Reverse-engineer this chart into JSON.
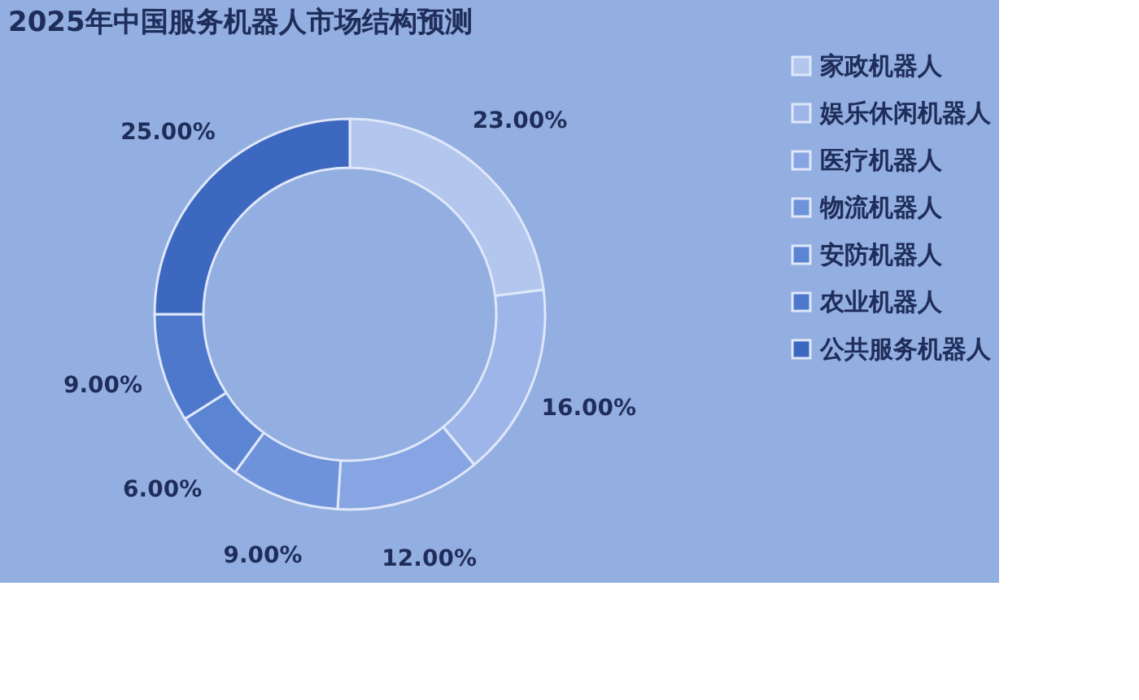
{
  "chart_data": {
    "type": "donut",
    "title": "2025年中国服务机器人市场结构预测",
    "categories": [
      "家政机器人",
      "娱乐休闲机器人",
      "医疗机器人",
      "物流机器人",
      "安防机器人",
      "农业机器人",
      "公共服务机器人"
    ],
    "values": [
      23,
      16,
      12,
      9,
      6,
      9,
      25
    ],
    "value_labels": [
      "23.00%",
      "16.00%",
      "12.00%",
      "9.00%",
      "6.00%",
      "9.00%",
      "25.00%"
    ],
    "colors": [
      "#b3c6ee",
      "#9db5e8",
      "#87a5e2",
      "#6f93da",
      "#5b84d3",
      "#4d78cb",
      "#3d68bf"
    ],
    "legend": "right"
  }
}
